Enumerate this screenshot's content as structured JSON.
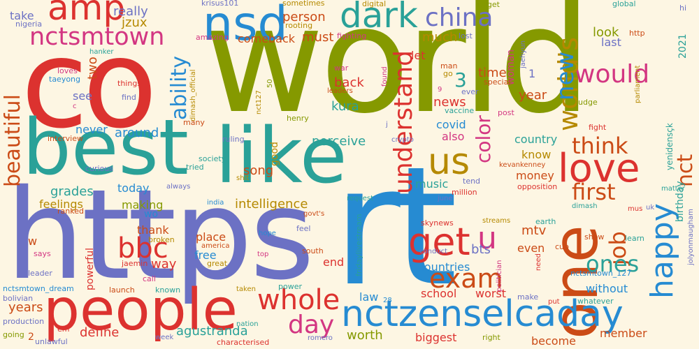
{
  "background": "#fdf6e3",
  "palette": {
    "olive": "#859900",
    "red": "#dc322f",
    "blue": "#268bd2",
    "violet": "#6c71c4",
    "teal": "#2aa198",
    "orange": "#cb4b16",
    "magenta": "#d33682",
    "yellow": "#b58900"
  },
  "words": [
    {
      "text": "world",
      "color": "#859900"
    },
    {
      "text": "co",
      "color": "#dc322f"
    },
    {
      "text": "https",
      "color": "#6c71c4"
    },
    {
      "text": "rt",
      "color": "#268bd2"
    },
    {
      "text": "best",
      "color": "#2aa198"
    },
    {
      "text": "like",
      "color": "#2aa198"
    },
    {
      "text": "people",
      "color": "#dc322f"
    },
    {
      "text": "one",
      "color": "#cb4b16"
    },
    {
      "text": "nsd",
      "color": "#268bd2"
    },
    {
      "text": "dark",
      "color": "#2aa198"
    },
    {
      "text": "amp",
      "color": "#dc322f"
    },
    {
      "text": "nctsmtown",
      "color": "#d33682"
    },
    {
      "text": "china",
      "color": "#6c71c4"
    },
    {
      "text": "would",
      "color": "#d33682"
    },
    {
      "text": "world's",
      "color": "#b58900"
    },
    {
      "text": "love",
      "color": "#dc322f"
    },
    {
      "text": "happy",
      "color": "#268bd2"
    },
    {
      "text": "nctzenselcaday",
      "color": "#268bd2"
    },
    {
      "text": "us",
      "color": "#b58900"
    },
    {
      "text": "get",
      "color": "#dc322f"
    },
    {
      "text": "u",
      "color": "#d33682"
    },
    {
      "text": "exam",
      "color": "#cb4b16"
    },
    {
      "text": "understand",
      "color": "#dc322f"
    },
    {
      "text": "ability",
      "color": "#268bd2"
    },
    {
      "text": "beautiful",
      "color": "#cb4b16"
    },
    {
      "text": "whole",
      "color": "#dc322f"
    },
    {
      "text": "day",
      "color": "#d33682"
    },
    {
      "text": "bbc",
      "color": "#dc322f"
    },
    {
      "text": "think",
      "color": "#cb4b16"
    },
    {
      "text": "first",
      "color": "#cb4b16"
    },
    {
      "text": "nct",
      "color": "#cb4b16"
    },
    {
      "text": "job",
      "color": "#cb4b16"
    },
    {
      "text": "ones",
      "color": "#2aa198"
    },
    {
      "text": "new",
      "color": "#268bd2"
    },
    {
      "text": "color",
      "color": "#d33682"
    },
    {
      "text": "3",
      "color": "#2aa198"
    },
    {
      "text": "really",
      "color": "#6c71c4"
    },
    {
      "text": "jzux",
      "color": "#b58900"
    },
    {
      "text": "krisus101",
      "color": "#6c71c4"
    },
    {
      "text": "sometimes",
      "color": "#b58900"
    },
    {
      "text": "digital",
      "color": "#b58900"
    },
    {
      "text": "forget",
      "color": "#859900"
    },
    {
      "text": "global",
      "color": "#2aa198"
    },
    {
      "text": "hi",
      "color": "#6c71c4"
    },
    {
      "text": "take",
      "color": "#6c71c4"
    },
    {
      "text": "nigeria",
      "color": "#6c71c4"
    },
    {
      "text": "person",
      "color": "#cb4b16"
    },
    {
      "text": "rooting",
      "color": "#b58900"
    },
    {
      "text": "must",
      "color": "#cb4b16"
    },
    {
      "text": "fighting",
      "color": "#d33682"
    },
    {
      "text": "comeback",
      "color": "#cb4b16"
    },
    {
      "text": "amazing",
      "color": "#d33682"
    },
    {
      "text": "much",
      "color": "#b58900"
    },
    {
      "text": "let",
      "color": "#dc322f"
    },
    {
      "text": "woman",
      "color": "#d33682"
    },
    {
      "text": "look",
      "color": "#859900"
    },
    {
      "text": "http",
      "color": "#cb4b16"
    },
    {
      "text": "last",
      "color": "#6c71c4"
    },
    {
      "text": "2021",
      "color": "#2aa198"
    },
    {
      "text": "lost",
      "color": "#6c71c4"
    },
    {
      "text": "jaehyun",
      "color": "#6c71c4"
    },
    {
      "text": "two",
      "color": "#cb4b16"
    },
    {
      "text": "loves",
      "color": "#d33682"
    },
    {
      "text": "taeyong",
      "color": "#268bd2"
    },
    {
      "text": "hanker",
      "color": "#2aa198"
    },
    {
      "text": "things",
      "color": "#dc322f"
    },
    {
      "text": "find",
      "color": "#6c71c4"
    },
    {
      "text": "c",
      "color": "#d33682"
    },
    {
      "text": "nct127",
      "color": "#b58900"
    },
    {
      "text": "50",
      "color": "#859900"
    },
    {
      "text": "back",
      "color": "#dc322f"
    },
    {
      "text": "found",
      "color": "#d33682"
    },
    {
      "text": "war",
      "color": "#d33682"
    },
    {
      "text": "leaders",
      "color": "#cb4b16"
    },
    {
      "text": "man",
      "color": "#cb4b16"
    },
    {
      "text": "go",
      "color": "#b58900"
    },
    {
      "text": "time",
      "color": "#cb4b16"
    },
    {
      "text": "1",
      "color": "#6c71c4"
    },
    {
      "text": "special",
      "color": "#cb4b16"
    },
    {
      "text": "ever",
      "color": "#6c71c4"
    },
    {
      "text": "9",
      "color": "#d33682"
    },
    {
      "text": "year",
      "color": "#cb4b16"
    },
    {
      "text": "news",
      "color": "#dc322f"
    },
    {
      "text": "judge",
      "color": "#859900"
    },
    {
      "text": "yenidensçk",
      "color": "#2aa198"
    },
    {
      "text": "see",
      "color": "#6c71c4"
    },
    {
      "text": "kura",
      "color": "#2aa198"
    },
    {
      "text": "vaccine",
      "color": "#2aa198"
    },
    {
      "text": "post",
      "color": "#d33682"
    },
    {
      "text": "dimash_official",
      "color": "#b58900"
    },
    {
      "text": "henry",
      "color": "#859900"
    },
    {
      "text": "many",
      "color": "#cb4b16"
    },
    {
      "text": "never",
      "color": "#268bd2"
    },
    {
      "text": "covid",
      "color": "#268bd2"
    },
    {
      "text": "fight",
      "color": "#dc322f"
    },
    {
      "text": "parliament",
      "color": "#b58900"
    },
    {
      "text": "interview",
      "color": "#cb4b16"
    },
    {
      "text": "around",
      "color": "#268bd2"
    },
    {
      "text": "also",
      "color": "#d33682"
    },
    {
      "text": "country",
      "color": "#2aa198"
    },
    {
      "text": "j",
      "color": "#6c71c4"
    },
    {
      "text": "crypto",
      "color": "#6c71c4"
    },
    {
      "text": "birthday",
      "color": "#2aa198"
    },
    {
      "text": "ruling",
      "color": "#6c71c4"
    },
    {
      "text": "perceive",
      "color": "#2aa198"
    },
    {
      "text": "good",
      "color": "#b58900"
    },
    {
      "text": "know",
      "color": "#b58900"
    },
    {
      "text": "kevankenney",
      "color": "#cb4b16"
    },
    {
      "text": "society",
      "color": "#2aa198"
    },
    {
      "text": "tried",
      "color": "#2aa198"
    },
    {
      "text": "curious",
      "color": "#6c71c4"
    },
    {
      "text": "grades",
      "color": "#2aa198"
    },
    {
      "text": "song",
      "color": "#cb4b16"
    },
    {
      "text": "money",
      "color": "#cb4b16"
    },
    {
      "text": "tend",
      "color": "#6c71c4"
    },
    {
      "text": "shit",
      "color": "#b58900"
    },
    {
      "text": "always",
      "color": "#6c71c4"
    },
    {
      "text": "today",
      "color": "#268bd2"
    },
    {
      "text": "opposition",
      "color": "#dc322f"
    },
    {
      "text": "music",
      "color": "#2aa198"
    },
    {
      "text": "million",
      "color": "#dc322f"
    },
    {
      "text": "matter",
      "color": "#2aa198"
    },
    {
      "text": "feelings",
      "color": "#b58900"
    },
    {
      "text": "intelligence",
      "color": "#b58900"
    },
    {
      "text": "india",
      "color": "#268bd2"
    },
    {
      "text": "ranked",
      "color": "#cb4b16"
    },
    {
      "text": "making",
      "color": "#859900"
    },
    {
      "text": "request",
      "color": "#2aa198"
    },
    {
      "text": "june",
      "color": "#6c71c4"
    },
    {
      "text": "wo",
      "color": "#268bd2"
    },
    {
      "text": "govt's",
      "color": "#cb4b16"
    },
    {
      "text": "dimash",
      "color": "#2aa198"
    },
    {
      "text": "mus",
      "color": "#dc322f"
    },
    {
      "text": "uk",
      "color": "#6c71c4"
    },
    {
      "text": "thank",
      "color": "#cb4b16"
    },
    {
      "text": "fridaylivestream",
      "color": "#2aa198"
    },
    {
      "text": "skynews",
      "color": "#dc322f"
    },
    {
      "text": "earth",
      "color": "#2aa198"
    },
    {
      "text": "streams",
      "color": "#b58900"
    },
    {
      "text": "mtv",
      "color": "#cb4b16"
    },
    {
      "text": "jolyonmaugham",
      "color": "#6c71c4"
    },
    {
      "text": "place",
      "color": "#cb4b16"
    },
    {
      "text": "broken",
      "color": "#b58900"
    },
    {
      "text": "feel",
      "color": "#6c71c4"
    },
    {
      "text": "show",
      "color": "#cb4b16"
    },
    {
      "text": "learn",
      "color": "#2aa198"
    },
    {
      "text": "w",
      "color": "#cb4b16"
    },
    {
      "text": "america",
      "color": "#cb4b16"
    },
    {
      "text": "hope",
      "color": "#268bd2"
    },
    {
      "text": "bts",
      "color": "#6c71c4"
    },
    {
      "text": "even",
      "color": "#cb4b16"
    },
    {
      "text": "cup",
      "color": "#cb4b16"
    },
    {
      "text": "says",
      "color": "#d33682"
    },
    {
      "text": "free",
      "color": "#268bd2"
    },
    {
      "text": "south",
      "color": "#cb4b16"
    },
    {
      "text": "top",
      "color": "#d33682"
    },
    {
      "text": "conduct",
      "color": "#6c71c4"
    },
    {
      "text": "need",
      "color": "#dc322f"
    },
    {
      "text": "jaemin",
      "color": "#dc322f"
    },
    {
      "text": "great",
      "color": "#b58900"
    },
    {
      "text": "way",
      "color": "#dc322f"
    },
    {
      "text": "powerful",
      "color": "#dc322f"
    },
    {
      "text": "end",
      "color": "#dc322f"
    },
    {
      "text": "countries",
      "color": "#268bd2"
    },
    {
      "text": "politician",
      "color": "#d33682"
    },
    {
      "text": "leader",
      "color": "#6c71c4"
    },
    {
      "text": "nctsmtown_127",
      "color": "#268bd2"
    },
    {
      "text": "nctsmtown_dream",
      "color": "#268bd2"
    },
    {
      "text": "launch",
      "color": "#cb4b16"
    },
    {
      "text": "known",
      "color": "#2aa198"
    },
    {
      "text": "call",
      "color": "#d33682"
    },
    {
      "text": "taken",
      "color": "#b58900"
    },
    {
      "text": "power",
      "color": "#2aa198"
    },
    {
      "text": "without",
      "color": "#268bd2"
    },
    {
      "text": "bolivian",
      "color": "#6c71c4"
    },
    {
      "text": "years",
      "color": "#cb4b16"
    },
    {
      "text": "law",
      "color": "#268bd2"
    },
    {
      "text": "school",
      "color": "#dc322f"
    },
    {
      "text": "worst",
      "color": "#dc322f"
    },
    {
      "text": "make",
      "color": "#6c71c4"
    },
    {
      "text": "put",
      "color": "#dc322f"
    },
    {
      "text": "whatever",
      "color": "#2aa198"
    },
    {
      "text": "28",
      "color": "#268bd2"
    },
    {
      "text": "production",
      "color": "#6c71c4"
    },
    {
      "text": "em",
      "color": "#dc322f"
    },
    {
      "text": "define",
      "color": "#dc322f"
    },
    {
      "text": "nation",
      "color": "#2aa198"
    },
    {
      "text": "agustranda",
      "color": "#2aa198"
    },
    {
      "text": "worth",
      "color": "#859900"
    },
    {
      "text": "member",
      "color": "#cb4b16"
    },
    {
      "text": "going",
      "color": "#859900"
    },
    {
      "text": "2",
      "color": "#cb4b16"
    },
    {
      "text": "unlawful",
      "color": "#6c71c4"
    },
    {
      "text": "week",
      "color": "#6c71c4"
    },
    {
      "text": "characterised",
      "color": "#dc322f"
    },
    {
      "text": "romero",
      "color": "#6c71c4"
    },
    {
      "text": "biggest",
      "color": "#dc322f"
    },
    {
      "text": "right",
      "color": "#859900"
    },
    {
      "text": "become",
      "color": "#cb4b16"
    }
  ]
}
